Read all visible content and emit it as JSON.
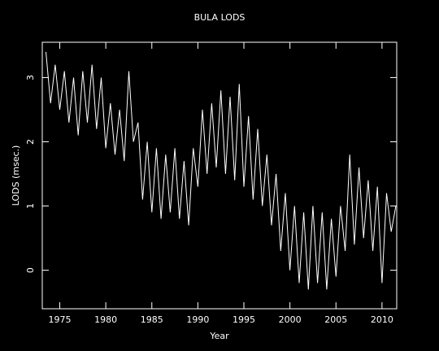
{
  "chart_data": {
    "type": "line",
    "title": "BULA LODS",
    "xlabel": "Year",
    "ylabel": "LODS (msec.)",
    "color": "#ffffff",
    "xlim": [
      1973.1,
      2011.6
    ],
    "ylim": [
      -0.6,
      3.55
    ],
    "xticks": [
      1975,
      1980,
      1985,
      1990,
      1995,
      2000,
      2005,
      2010
    ],
    "yticks": [
      0,
      1,
      2,
      3
    ],
    "x": [
      1973.5,
      1974,
      1974.5,
      1975,
      1975.5,
      1976,
      1976.5,
      1977,
      1977.5,
      1978,
      1978.5,
      1979,
      1979.5,
      1980,
      1980.5,
      1981,
      1981.5,
      1982,
      1982.5,
      1983,
      1983.5,
      1984,
      1984.5,
      1985,
      1985.5,
      1986,
      1986.5,
      1987,
      1987.5,
      1988,
      1988.5,
      1989,
      1989.5,
      1990,
      1990.5,
      1991,
      1991.5,
      1992,
      1992.5,
      1993,
      1993.5,
      1994,
      1994.5,
      1995,
      1995.5,
      1996,
      1996.5,
      1997,
      1997.5,
      1998,
      1998.5,
      1999,
      1999.5,
      2000,
      2000.5,
      2001,
      2001.5,
      2002,
      2002.5,
      2003,
      2003.5,
      2004,
      2004.5,
      2005,
      2005.5,
      2006,
      2006.5,
      2007,
      2007.5,
      2008,
      2008.5,
      2009,
      2009.5,
      2010,
      2010.5,
      2011,
      2011.5
    ],
    "values": [
      3.4,
      2.6,
      3.2,
      2.5,
      3.1,
      2.3,
      3.0,
      2.1,
      3.1,
      2.3,
      3.2,
      2.2,
      3.0,
      1.9,
      2.6,
      1.8,
      2.5,
      1.7,
      3.1,
      2.0,
      2.3,
      1.1,
      2.0,
      0.9,
      1.9,
      0.8,
      1.8,
      0.9,
      1.9,
      0.8,
      1.7,
      0.7,
      1.9,
      1.3,
      2.5,
      1.5,
      2.6,
      1.6,
      2.8,
      1.5,
      2.7,
      1.4,
      2.9,
      1.3,
      2.4,
      1.1,
      2.2,
      1.0,
      1.8,
      0.7,
      1.5,
      0.3,
      1.2,
      0.0,
      1.0,
      -0.2,
      0.9,
      -0.3,
      1.0,
      -0.2,
      0.9,
      -0.3,
      0.8,
      -0.1,
      1.0,
      0.3,
      1.8,
      0.4,
      1.6,
      0.5,
      1.4,
      0.3,
      1.3,
      -0.2,
      1.2,
      0.6,
      1.0
    ]
  }
}
